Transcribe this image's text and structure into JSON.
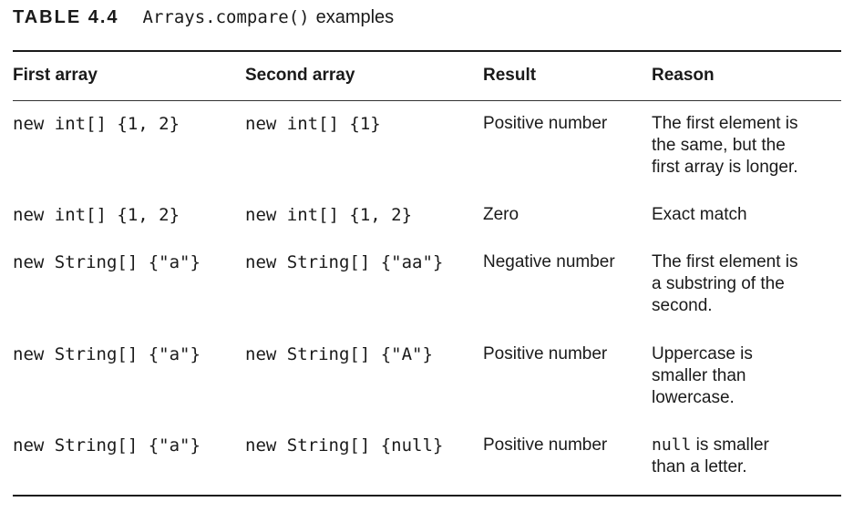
{
  "caption": {
    "label": "TABLE 4.4",
    "code": "Arrays.compare()",
    "text": "examples"
  },
  "headers": {
    "first": "First array",
    "second": "Second array",
    "result": "Result",
    "reason": "Reason"
  },
  "rows": [
    {
      "first": "new int[] {1, 2}",
      "second": "new int[] {1}",
      "result": "Positive number",
      "reason": [
        "The first element is",
        "the same, but the",
        "first array is longer."
      ]
    },
    {
      "first": "new int[] {1, 2}",
      "second": "new int[] {1, 2}",
      "result": "Zero",
      "reason": [
        "Exact match"
      ]
    },
    {
      "first": "new String[] {\"a\"}",
      "second": "new String[] {\"aa\"}",
      "result": "Negative number",
      "reason": [
        "The first element is",
        "a substring of the",
        "second."
      ]
    },
    {
      "first": "new String[] {\"a\"}",
      "second": "new String[] {\"A\"}",
      "result": "Positive number",
      "reason": [
        "Uppercase is",
        "smaller than",
        "lowercase."
      ]
    },
    {
      "first": "new String[] {\"a\"}",
      "second": "new String[] {null}",
      "result": "Positive number",
      "reason_code": "null",
      "reason": [
        " is smaller",
        "than a letter."
      ]
    }
  ]
}
